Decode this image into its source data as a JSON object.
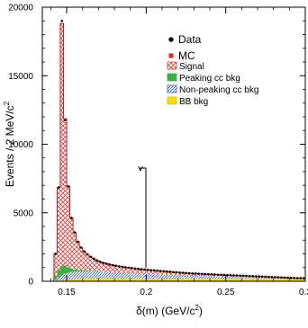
{
  "chart_data": {
    "type": "histogram-stacked",
    "xlabel_main": "δ(m) (GeV/c",
    "xlabel_sup": "2",
    "xlabel_close": ")",
    "ylabel_main": "Events / 2 MeV/c",
    "ylabel_sup": "2",
    "xlim": [
      0.1347,
      0.3
    ],
    "ylim": [
      0,
      20000
    ],
    "x_ticks": [
      0.15,
      0.2,
      0.25,
      0.3
    ],
    "x_tick_labels": [
      "0.15",
      "0.2",
      "0.25",
      "0.3"
    ],
    "y_ticks": [
      0,
      5000,
      10000,
      15000,
      20000
    ],
    "y_tick_labels": [
      "0",
      "5000",
      "10000",
      "15000",
      "20000"
    ],
    "bin_width": 0.002,
    "bin_edges_start": 0.136,
    "data_label": "Data",
    "mc_label": "MC",
    "legend": [
      {
        "name": "Signal",
        "color": "#e23c3c",
        "pattern": "crosshatch"
      },
      {
        "name": "Peaking cc bkg",
        "color": "#3cb043",
        "pattern": "solid"
      },
      {
        "name": "Non-peaking cc bkg",
        "color": "#3a5fcd",
        "pattern": "hatch"
      },
      {
        "name": "BB bkg",
        "color": "#f0e000",
        "pattern": "solid"
      }
    ],
    "series": [
      {
        "name": "BB bkg",
        "values": [
          0,
          0,
          0,
          10,
          40,
          80,
          110,
          130,
          150,
          160,
          170,
          175,
          180,
          185,
          185,
          185,
          185,
          185,
          185,
          185,
          185,
          185,
          185,
          185,
          185,
          185,
          185,
          185,
          185,
          185,
          185,
          185,
          185,
          185,
          185,
          185,
          185,
          185,
          185,
          185,
          185,
          185,
          185,
          185,
          185,
          185,
          185,
          185,
          185,
          185,
          185,
          185,
          185,
          185,
          185,
          185,
          185,
          185,
          185,
          185,
          185,
          185,
          185,
          185,
          185,
          185,
          185,
          185,
          185,
          185,
          185,
          185,
          185,
          185,
          185,
          185,
          185,
          185,
          185,
          185,
          185,
          185
        ]
      },
      {
        "name": "Non-peaking cc bkg",
        "values": [
          0,
          0,
          0,
          100,
          250,
          380,
          450,
          500,
          520,
          530,
          540,
          545,
          545,
          540,
          535,
          525,
          510,
          500,
          490,
          480,
          465,
          455,
          445,
          435,
          425,
          415,
          405,
          395,
          385,
          375,
          365,
          355,
          345,
          335,
          325,
          315,
          305,
          295,
          285,
          275,
          265,
          255,
          245,
          235,
          225,
          215,
          210,
          205,
          200,
          195,
          190,
          185,
          180,
          175,
          170,
          165,
          160,
          155,
          150,
          145,
          140,
          135,
          130,
          125,
          120,
          115,
          110,
          105,
          100,
          95,
          90,
          85,
          80,
          75,
          70,
          65,
          60,
          55,
          50,
          45,
          40,
          35
        ]
      },
      {
        "name": "Peaking cc bkg",
        "values": [
          0,
          0,
          0,
          300,
          550,
          650,
          600,
          400,
          250,
          170,
          120,
          90,
          70,
          55,
          45,
          35,
          25,
          15,
          10,
          5,
          3,
          2,
          1,
          0,
          0,
          0,
          0,
          0,
          0,
          0,
          0,
          0,
          0,
          0,
          0,
          0,
          0,
          0,
          0,
          0,
          0,
          0,
          0,
          0,
          0,
          0,
          0,
          0,
          0,
          0,
          0,
          0,
          0,
          0,
          0,
          0,
          0,
          0,
          0,
          0,
          0,
          0,
          0,
          0,
          0,
          0,
          0,
          0,
          0,
          0,
          0,
          0,
          0,
          0,
          0,
          0,
          0,
          0,
          0,
          0,
          0,
          0
        ]
      },
      {
        "name": "Signal",
        "values": [
          0,
          0,
          0,
          1600,
          6000,
          17700,
          10700,
          5900,
          3700,
          2700,
          2050,
          1650,
          1380,
          1180,
          1030,
          900,
          800,
          720,
          660,
          610,
          570,
          535,
          500,
          470,
          445,
          420,
          400,
          380,
          360,
          345,
          330,
          315,
          300,
          290,
          280,
          270,
          260,
          250,
          240,
          230,
          220,
          212,
          205,
          198,
          190,
          183,
          176,
          170,
          164,
          158,
          152,
          146,
          140,
          134,
          128,
          122,
          116,
          110,
          105,
          100,
          95,
          90,
          85,
          80,
          75,
          70,
          65,
          60,
          55,
          50,
          45,
          40,
          35,
          30,
          25,
          20,
          15,
          10,
          5,
          0,
          0,
          0
        ]
      }
    ],
    "data_points": {
      "name": "Data",
      "values": [
        0,
        0,
        0,
        2000,
        6850,
        19000,
        11760,
        6930,
        4620,
        3560,
        2880,
        2460,
        2175,
        1960,
        1795,
        1645,
        1520,
        1420,
        1345,
        1280,
        1223,
        1177,
        1131,
        1090,
        1055,
        1020,
        990,
        960,
        930,
        905,
        880,
        855,
        830,
        810,
        790,
        770,
        750,
        730,
        710,
        690,
        670,
        652,
        635,
        618,
        600,
        583,
        571,
        560,
        549,
        538,
        527,
        516,
        505,
        494,
        483,
        472,
        461,
        450,
        440,
        430,
        420,
        410,
        400,
        390,
        380,
        370,
        360,
        350,
        340,
        330,
        320,
        310,
        300,
        290,
        280,
        270,
        260,
        250,
        240,
        230,
        225,
        220
      ]
    }
  }
}
